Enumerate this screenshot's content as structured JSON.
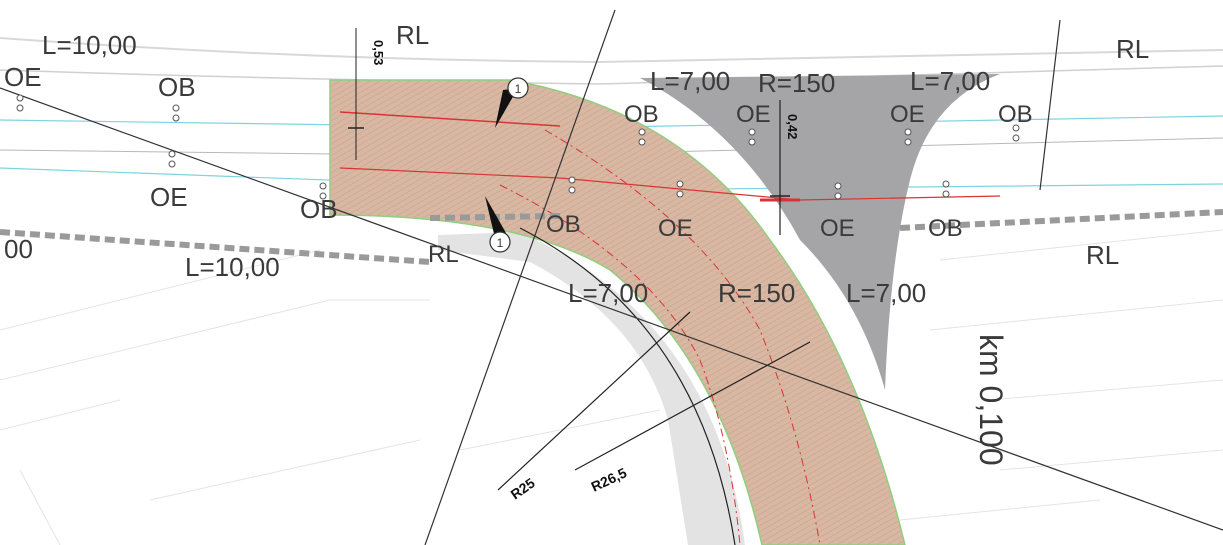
{
  "labels": {
    "l10_top": "L=10,00",
    "l10_bottom": "L=10,00",
    "l7_top_left": "L=7,00",
    "r150_top": "R=150",
    "l7_top_right": "L=7,00",
    "l7_mid": "L=7,00",
    "r150_mid": "R=150",
    "l7_mid_right": "L=7,00",
    "rl_top_left": "RL",
    "rl_top_right": "RL",
    "rl_right": "RL",
    "rl_mid": "RL",
    "km": "km 0,100",
    "oe_left": "OE",
    "ob_top_left": "OB",
    "oe_mid_left": "OE",
    "ob_mid_left": "OB",
    "ob_top_center": "OB",
    "oe_top_center": "OE",
    "oe_top_right": "OE",
    "ob_top_right": "OB",
    "ob_center": "OB",
    "oe_center": "OE",
    "oe_center_right": "OE",
    "ob_center_right": "OB",
    "partial_00": "00",
    "dim_053": "0,53",
    "dim_042": "0,42",
    "r25": "R25",
    "r265": "R26,5",
    "marker_1": "1"
  },
  "colors": {
    "road_fill": "#d8b7a3",
    "grey_fill": "#a5a5a8",
    "light_grey": "#e3e3e3",
    "red_line": "#d93434",
    "cyan_line": "#7ed4de",
    "green_edge": "#8fcf7e",
    "dash_grey": "#9a9a9a"
  }
}
